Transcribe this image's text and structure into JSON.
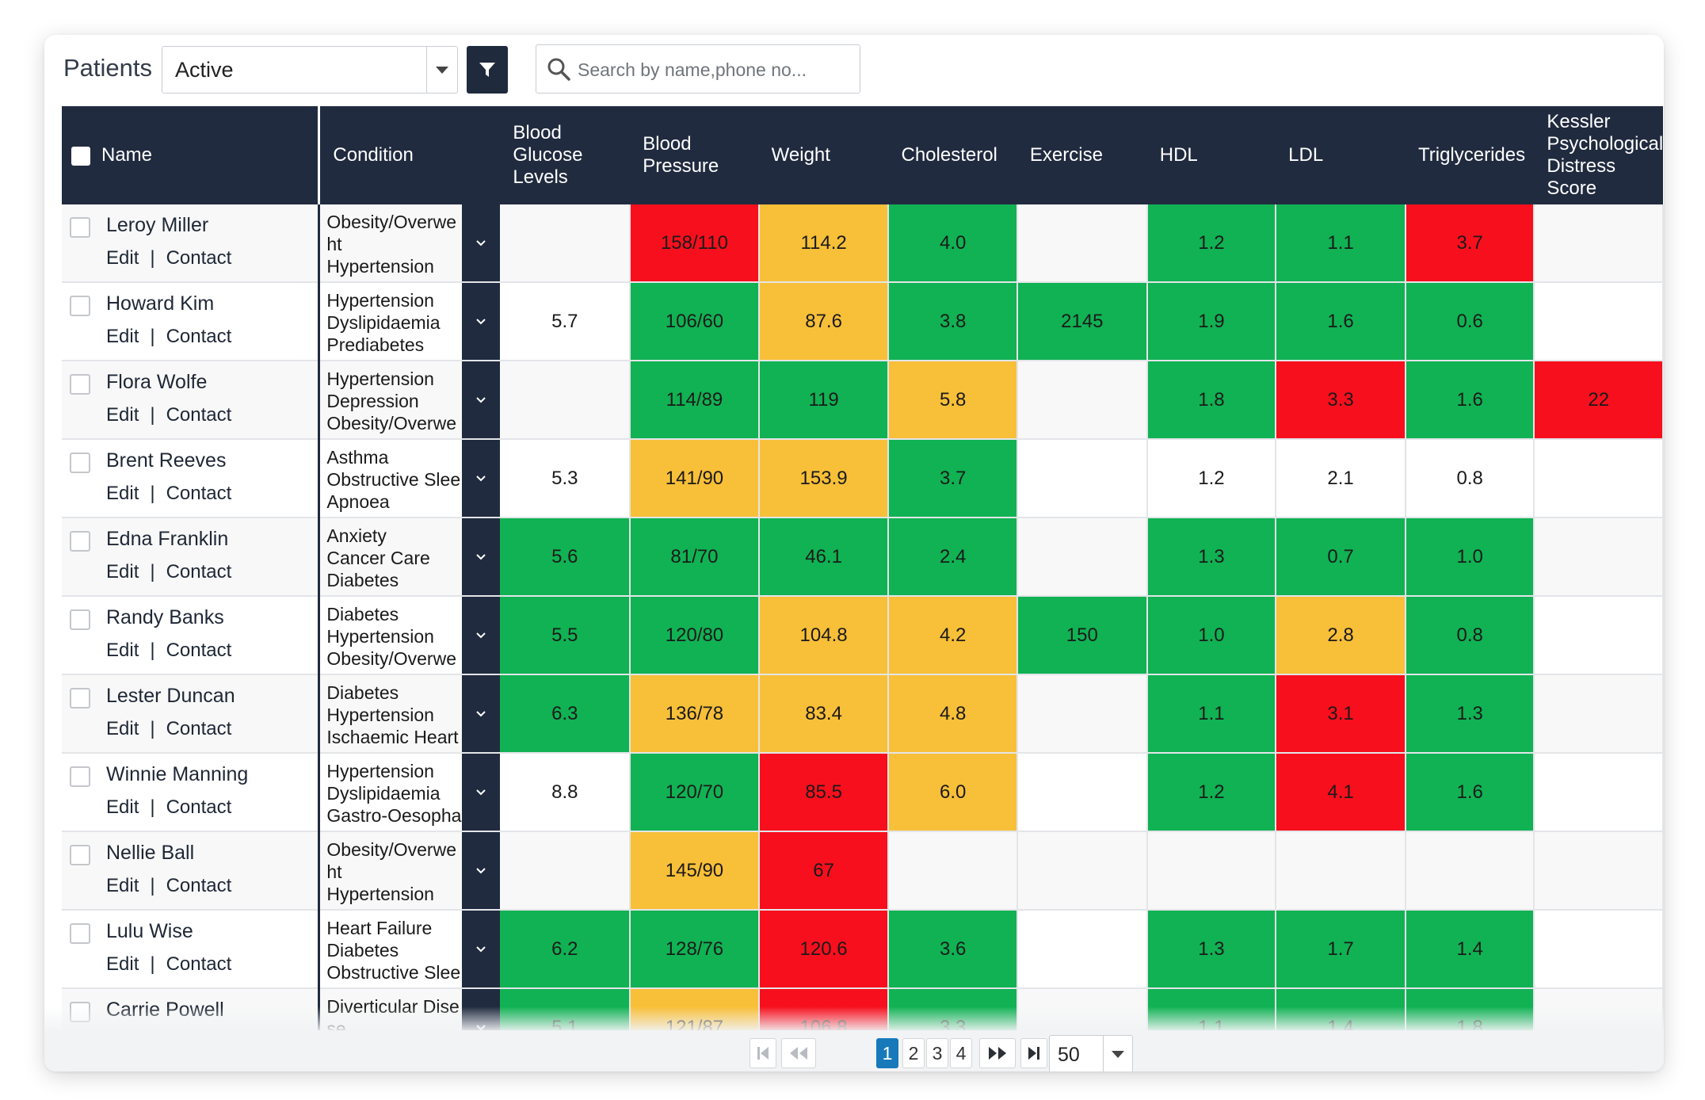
{
  "toolbar": {
    "title": "Patients",
    "status_value": "Active",
    "search_placeholder": "Search by name,phone no..."
  },
  "columns": [
    "Name",
    "Condition",
    "Blood Glucose Levels",
    "Blood Pressure",
    "Weight",
    "Cholesterol",
    "Exercise",
    "HDL",
    "LDL",
    "Triglycerides",
    "Kessler Psychological Distress Score"
  ],
  "row_links": {
    "edit": "Edit",
    "separator": "|",
    "contact": "Contact"
  },
  "status_colors": {
    "green": "#10b253",
    "amber": "#f8bf38",
    "red": "#f70f1d",
    "header": "#212b3f"
  },
  "patients": [
    {
      "name": "Leroy Miller",
      "conditions": [
        "Obesity/Overwe",
        "ht",
        "Hypertension"
      ],
      "values": [
        [
          "",
          ""
        ],
        [
          "158/110",
          "r"
        ],
        [
          "114.2",
          "y"
        ],
        [
          "4.0",
          "g"
        ],
        [
          "",
          ""
        ],
        [
          "1.2",
          "g"
        ],
        [
          "1.1",
          "g"
        ],
        [
          "3.7",
          "r"
        ],
        [
          "",
          ""
        ]
      ]
    },
    {
      "name": "Howard Kim",
      "conditions": [
        "Hypertension",
        "Dyslipidaemia",
        "Prediabetes"
      ],
      "values": [
        [
          "5.7",
          "w"
        ],
        [
          "106/60",
          "g"
        ],
        [
          "87.6",
          "y"
        ],
        [
          "3.8",
          "g"
        ],
        [
          "2145",
          "g"
        ],
        [
          "1.9",
          "g"
        ],
        [
          "1.6",
          "g"
        ],
        [
          "0.6",
          "g"
        ],
        [
          "",
          ""
        ]
      ]
    },
    {
      "name": "Flora Wolfe",
      "conditions": [
        "Hypertension",
        "Depression",
        "Obesity/Overwe"
      ],
      "values": [
        [
          "",
          ""
        ],
        [
          "114/89",
          "g"
        ],
        [
          "119",
          "g"
        ],
        [
          "5.8",
          "y"
        ],
        [
          "",
          ""
        ],
        [
          "1.8",
          "g"
        ],
        [
          "3.3",
          "r"
        ],
        [
          "1.6",
          "g"
        ],
        [
          "22",
          "r"
        ]
      ]
    },
    {
      "name": "Brent Reeves",
      "conditions": [
        "Asthma",
        "Obstructive Slee",
        "Apnoea"
      ],
      "values": [
        [
          "5.3",
          "w"
        ],
        [
          "141/90",
          "y"
        ],
        [
          "153.9",
          "y"
        ],
        [
          "3.7",
          "g"
        ],
        [
          "",
          ""
        ],
        [
          "1.2",
          "w"
        ],
        [
          "2.1",
          "w"
        ],
        [
          "0.8",
          "w"
        ],
        [
          "",
          ""
        ]
      ]
    },
    {
      "name": "Edna Franklin",
      "conditions": [
        "Anxiety",
        "Cancer Care",
        "Diabetes"
      ],
      "values": [
        [
          "5.6",
          "g"
        ],
        [
          "81/70",
          "g"
        ],
        [
          "46.1",
          "g"
        ],
        [
          "2.4",
          "g"
        ],
        [
          "",
          ""
        ],
        [
          "1.3",
          "g"
        ],
        [
          "0.7",
          "g"
        ],
        [
          "1.0",
          "g"
        ],
        [
          "",
          ""
        ]
      ]
    },
    {
      "name": "Randy Banks",
      "conditions": [
        "Diabetes",
        "Hypertension",
        "Obesity/Overwe"
      ],
      "values": [
        [
          "5.5",
          "g"
        ],
        [
          "120/80",
          "g"
        ],
        [
          "104.8",
          "y"
        ],
        [
          "4.2",
          "y"
        ],
        [
          "150",
          "g"
        ],
        [
          "1.0",
          "g"
        ],
        [
          "2.8",
          "y"
        ],
        [
          "0.8",
          "g"
        ],
        [
          "",
          ""
        ]
      ]
    },
    {
      "name": "Lester Duncan",
      "conditions": [
        "Diabetes",
        "Hypertension",
        "Ischaemic Heart"
      ],
      "values": [
        [
          "6.3",
          "g"
        ],
        [
          "136/78",
          "y"
        ],
        [
          "83.4",
          "y"
        ],
        [
          "4.8",
          "y"
        ],
        [
          "",
          ""
        ],
        [
          "1.1",
          "g"
        ],
        [
          "3.1",
          "r"
        ],
        [
          "1.3",
          "g"
        ],
        [
          "",
          ""
        ]
      ]
    },
    {
      "name": "Winnie Manning",
      "conditions": [
        "Hypertension",
        "Dyslipidaemia",
        "Gastro-Oesopha"
      ],
      "values": [
        [
          "8.8",
          "w"
        ],
        [
          "120/70",
          "g"
        ],
        [
          "85.5",
          "r"
        ],
        [
          "6.0",
          "y"
        ],
        [
          "",
          ""
        ],
        [
          "1.2",
          "g"
        ],
        [
          "4.1",
          "r"
        ],
        [
          "1.6",
          "g"
        ],
        [
          "",
          ""
        ]
      ]
    },
    {
      "name": "Nellie Ball",
      "conditions": [
        "Obesity/Overwe",
        "ht",
        "Hypertension"
      ],
      "values": [
        [
          "",
          ""
        ],
        [
          "145/90",
          "y"
        ],
        [
          "67",
          "r"
        ],
        [
          "",
          ""
        ],
        [
          "",
          ""
        ],
        [
          "",
          ""
        ],
        [
          "",
          ""
        ],
        [
          "",
          ""
        ],
        [
          "",
          ""
        ]
      ]
    },
    {
      "name": "Lulu Wise",
      "conditions": [
        "Heart Failure",
        "Diabetes",
        "Obstructive Slee"
      ],
      "values": [
        [
          "6.2",
          "g"
        ],
        [
          "128/76",
          "g"
        ],
        [
          "120.6",
          "r"
        ],
        [
          "3.6",
          "g"
        ],
        [
          "",
          ""
        ],
        [
          "1.3",
          "g"
        ],
        [
          "1.7",
          "g"
        ],
        [
          "1.4",
          "g"
        ],
        [
          "",
          ""
        ]
      ]
    },
    {
      "name": "Carrie Powell",
      "conditions": [
        "Diverticular Dise",
        "se"
      ],
      "values": [
        [
          "5.1",
          "g"
        ],
        [
          "121/87",
          "y"
        ],
        [
          "106.8",
          "r"
        ],
        [
          "3.3",
          "g"
        ],
        [
          "",
          ""
        ],
        [
          "1.1",
          "g"
        ],
        [
          "1.4",
          "g"
        ],
        [
          "1.8",
          "g"
        ],
        [
          "",
          ""
        ]
      ]
    }
  ],
  "pagination": {
    "pages": [
      "1",
      "2",
      "3",
      "4"
    ],
    "current": "1",
    "page_size": "50"
  }
}
